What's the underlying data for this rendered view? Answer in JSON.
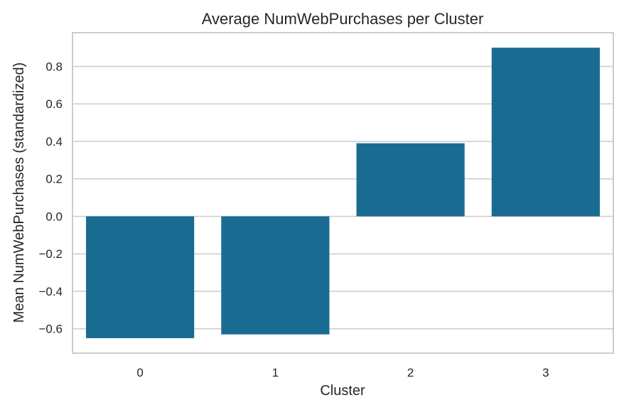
{
  "chart_data": {
    "type": "bar",
    "title": "Average NumWebPurchases per Cluster",
    "xlabel": "Cluster",
    "ylabel": "Mean NumWebPurchases (standardized)",
    "categories": [
      "0",
      "1",
      "2",
      "3"
    ],
    "values": [
      -0.65,
      -0.63,
      0.39,
      0.9
    ],
    "ylim": [
      -0.73,
      0.98
    ],
    "yticks": [
      -0.6,
      -0.4,
      -0.2,
      0.0,
      0.2,
      0.4,
      0.6,
      0.8
    ],
    "ytick_labels": [
      "−0.6",
      "−0.4",
      "−0.2",
      "0.0",
      "0.2",
      "0.4",
      "0.6",
      "0.8"
    ],
    "grid": "horizontal",
    "bar_color": "#1a6b91"
  }
}
